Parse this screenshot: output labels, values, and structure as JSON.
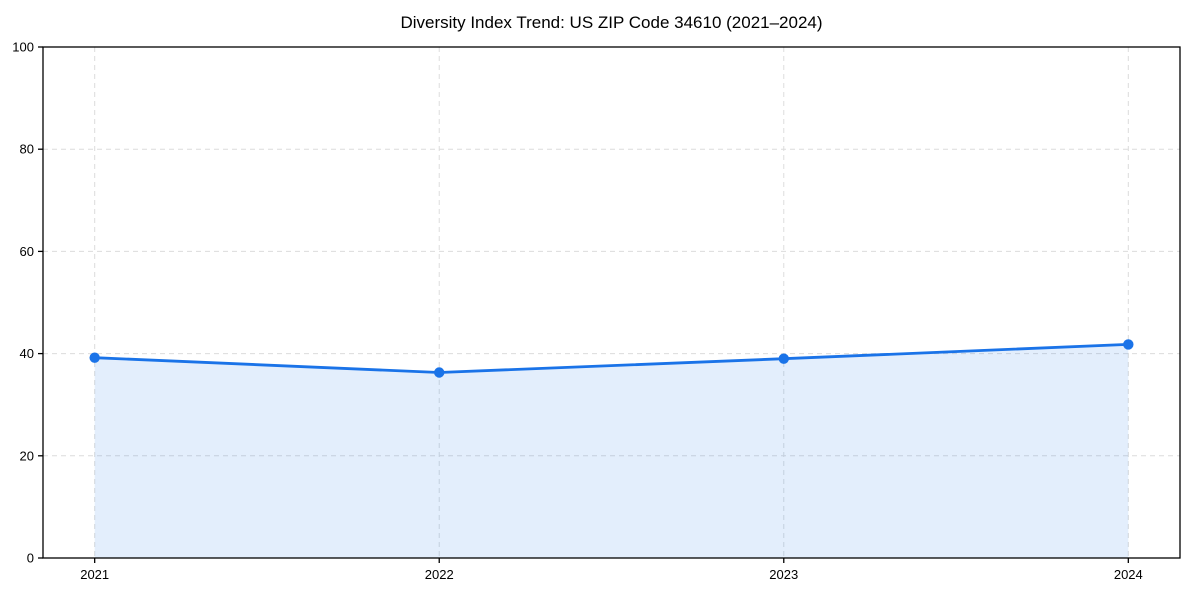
{
  "chart_data": {
    "type": "line",
    "title": "Diversity Index Trend: US ZIP Code 34610 (2021–2024)",
    "x": [
      "2021",
      "2022",
      "2023",
      "2024"
    ],
    "series": [
      {
        "name": "Diversity Index",
        "values": [
          39.2,
          36.3,
          39.0,
          41.8
        ]
      }
    ],
    "xlabel": "",
    "ylabel": "",
    "ylim": [
      0,
      100
    ],
    "yticks": [
      0,
      20,
      40,
      60,
      80,
      100
    ],
    "grid": true,
    "grid_style": "dashed",
    "legend": false,
    "colors": {
      "line": "#1a73e8",
      "marker": "#1a73e8",
      "area_fill": "rgba(26,115,232,0.12)",
      "grid": "#dcdcdc",
      "spine": "#000000",
      "text": "#000000",
      "background": "#ffffff"
    }
  }
}
